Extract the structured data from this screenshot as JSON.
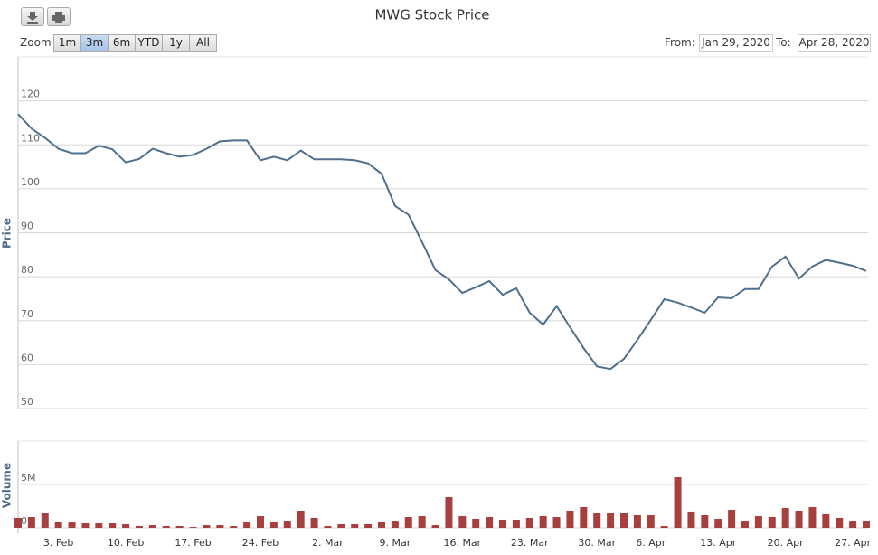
{
  "range_selector": {
    "label": "Zoom",
    "buttons": [
      "1m",
      "3m",
      "6m",
      "YTD",
      "1y",
      "All"
    ],
    "selected": 1,
    "from_label": "From:",
    "from": "Jan 29, 2020",
    "to_label": "To:",
    "to": "Apr 28, 2020"
  },
  "chart_data": [
    {
      "type": "line",
      "title": "MWG Stock Price",
      "y_label": "Price",
      "color": "#4f6f8f",
      "ylim": [
        50,
        130
      ],
      "yticks": [
        50,
        60,
        70,
        80,
        90,
        100,
        110,
        120
      ],
      "grid": true,
      "values": [
        117.0,
        113.7,
        111.6,
        109.1,
        108.1,
        108.1,
        109.8,
        109.0,
        106.0,
        106.8,
        109.1,
        108.1,
        107.3,
        107.7,
        109.1,
        110.8,
        111.0,
        111.0,
        106.5,
        107.3,
        106.5,
        108.7,
        106.7,
        106.7,
        106.7,
        106.5,
        105.8,
        103.4,
        96.1,
        94.1,
        87.9,
        81.5,
        79.4,
        76.3,
        77.6,
        79.0,
        75.9,
        77.4,
        71.8,
        69.1,
        73.3,
        68.5,
        63.8,
        59.6,
        59.0,
        61.3,
        65.6,
        70.2,
        74.9,
        74.1,
        73.0,
        71.8,
        75.3,
        75.1,
        77.2,
        77.2,
        82.3,
        84.6,
        79.6,
        82.3,
        83.8,
        83.2,
        82.5,
        81.3
      ]
    },
    {
      "type": "bar",
      "y_label": "Volume",
      "color": "#a83f3f",
      "ylim": [
        0,
        10000000
      ],
      "yticks": [
        {
          "value": 0,
          "label": "0M"
        },
        {
          "value": 5000000,
          "label": "5M"
        }
      ],
      "grid": true,
      "categories": [
        null,
        null,
        null,
        "3. Feb",
        null,
        null,
        null,
        null,
        "10. Feb",
        null,
        null,
        null,
        null,
        "17. Feb",
        null,
        null,
        null,
        null,
        "24. Feb",
        null,
        null,
        null,
        null,
        "2. Mar",
        null,
        null,
        null,
        null,
        "9. Mar",
        null,
        null,
        null,
        null,
        "16. Mar",
        null,
        null,
        null,
        null,
        "23. Mar",
        null,
        null,
        null,
        null,
        "30. Mar",
        null,
        null,
        null,
        "6. Apr",
        null,
        null,
        null,
        null,
        "13. Apr",
        null,
        null,
        null,
        null,
        "20. Apr",
        null,
        null,
        null,
        null,
        "27. Apr",
        null
      ],
      "values": [
        1150000,
        1250000,
        1770000,
        730000,
        630000,
        520000,
        520000,
        520000,
        420000,
        210000,
        310000,
        210000,
        210000,
        100000,
        310000,
        310000,
        210000,
        730000,
        1350000,
        630000,
        830000,
        1980000,
        1150000,
        210000,
        420000,
        420000,
        420000,
        630000,
        830000,
        1250000,
        1350000,
        310000,
        3540000,
        1350000,
        1040000,
        1250000,
        940000,
        940000,
        1150000,
        1350000,
        1250000,
        1980000,
        2400000,
        1670000,
        1670000,
        1670000,
        1460000,
        1460000,
        210000,
        5830000,
        1880000,
        1460000,
        1040000,
        2080000,
        830000,
        1350000,
        1250000,
        2290000,
        1980000,
        2400000,
        1560000,
        1150000,
        830000,
        830000
      ]
    }
  ]
}
